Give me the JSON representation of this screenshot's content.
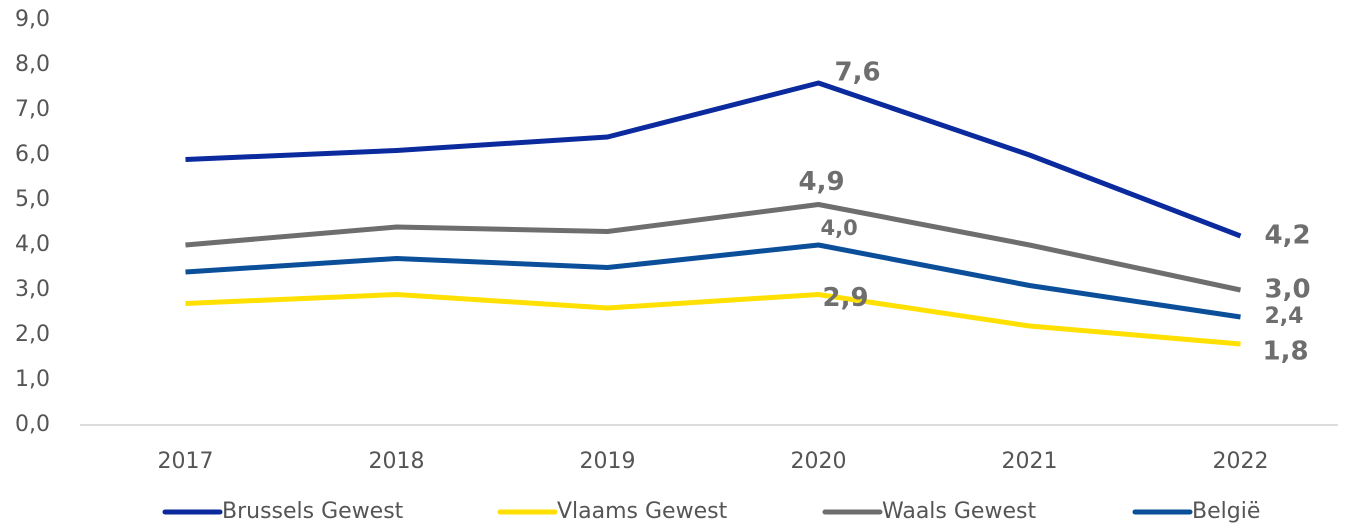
{
  "chart_data": {
    "type": "line",
    "categories": [
      "2017",
      "2018",
      "2019",
      "2020",
      "2021",
      "2022"
    ],
    "series": [
      {
        "name": "Brussels Gewest",
        "color": "#0a2a9e",
        "values": [
          5.9,
          6.1,
          6.4,
          7.6,
          6.0,
          4.2
        ],
        "value_labels": [
          null,
          null,
          null,
          "7,6",
          null,
          "4,2"
        ]
      },
      {
        "name": "Vlaams Gewest",
        "color": "#ffe000",
        "values": [
          2.7,
          2.9,
          2.6,
          2.9,
          2.2,
          1.8
        ],
        "value_labels": [
          null,
          null,
          null,
          "2,9",
          null,
          "1,8"
        ]
      },
      {
        "name": "Waals Gewest",
        "color": "#6e6e6e",
        "values": [
          4.0,
          4.4,
          4.3,
          4.9,
          4.0,
          3.0
        ],
        "value_labels": [
          null,
          null,
          null,
          "4,9",
          null,
          "3,0"
        ]
      },
      {
        "name": "België",
        "color": "#0b4f9a",
        "values": [
          3.4,
          3.7,
          3.5,
          4.0,
          3.1,
          2.4
        ],
        "value_labels": [
          null,
          null,
          null,
          "4,0",
          null,
          "2,4"
        ]
      }
    ],
    "ylim": [
      0,
      9
    ],
    "yticks": [
      {
        "value": 0,
        "label": "0,0"
      },
      {
        "value": 1,
        "label": "1,0"
      },
      {
        "value": 2,
        "label": "2,0"
      },
      {
        "value": 3,
        "label": "3,0"
      },
      {
        "value": 4,
        "label": "4,0"
      },
      {
        "value": 5,
        "label": "5,0"
      },
      {
        "value": 6,
        "label": "6,0"
      },
      {
        "value": 7,
        "label": "7,0"
      },
      {
        "value": 8,
        "label": "8,0"
      },
      {
        "value": 9,
        "label": "9,0"
      }
    ],
    "legend": "bottom"
  }
}
